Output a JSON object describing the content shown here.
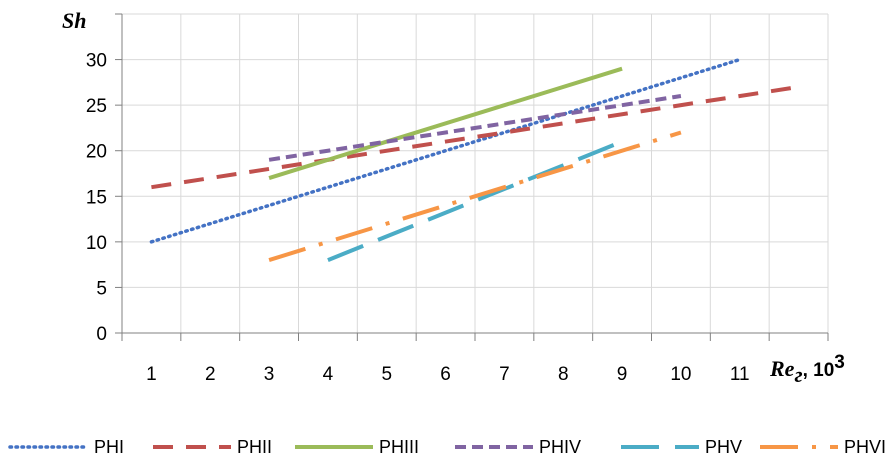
{
  "chart_data": {
    "type": "line",
    "ylabel": "Sh",
    "xlabel_main": "Re",
    "xlabel_sub": "г",
    "xlabel_unit": ", 10",
    "xlabel_exp": "3",
    "x_ticks": [
      "1",
      "2",
      "3",
      "4",
      "5",
      "6",
      "7",
      "8",
      "9",
      "10",
      "11"
    ],
    "y_ticks": [
      "0",
      "5",
      "10",
      "15",
      "20",
      "25",
      "30"
    ],
    "xlim": [
      0.5,
      12.5
    ],
    "ylim": [
      0,
      35
    ],
    "grid": true,
    "legend_position": "bottom",
    "series": [
      {
        "name": "PHI",
        "x": [
          1,
          11
        ],
        "y": [
          10,
          30
        ],
        "color": "#4472c4",
        "style": "dotted"
      },
      {
        "name": "PHII",
        "x": [
          1,
          12
        ],
        "y": [
          16,
          27
        ],
        "color": "#c0504d",
        "style": "dashed"
      },
      {
        "name": "PHIII",
        "x": [
          3,
          9
        ],
        "y": [
          17,
          29
        ],
        "color": "#9bbb59",
        "style": "solid"
      },
      {
        "name": "PHIV",
        "x": [
          3,
          10
        ],
        "y": [
          19,
          26
        ],
        "color": "#8064a2",
        "style": "dashed-short"
      },
      {
        "name": "PHV",
        "x": [
          4,
          9
        ],
        "y": [
          8,
          21
        ],
        "color": "#4bacc6",
        "style": "long-dash"
      },
      {
        "name": "PHVI",
        "x": [
          3,
          10
        ],
        "y": [
          8,
          22
        ],
        "color": "#f79646",
        "style": "long-dash-dot"
      }
    ]
  }
}
